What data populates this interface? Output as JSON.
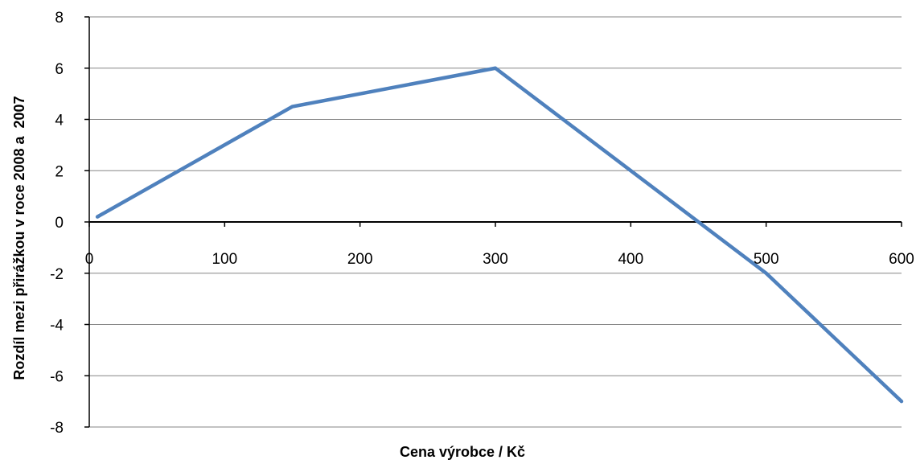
{
  "chart_data": {
    "type": "line",
    "title": "",
    "xlabel": "Cena výrobce / Kč",
    "ylabel": "Rozdíl mezi přirážkou v roce 2008 a  2007",
    "xlim": [
      0,
      600
    ],
    "ylim": [
      -8,
      8
    ],
    "x_ticks": [
      0,
      100,
      200,
      300,
      400,
      500,
      600
    ],
    "y_ticks": [
      8,
      6,
      4,
      2,
      0,
      -2,
      -4,
      -6,
      -8
    ],
    "x_tick_labels": [
      "0",
      "100",
      "200",
      "300",
      "400",
      "500",
      "600"
    ],
    "y_tick_labels": [
      "8",
      "6",
      "4",
      "2",
      "0",
      "-2",
      "-4",
      "-6",
      "-8"
    ],
    "grid": true,
    "series": [
      {
        "x": [
          6,
          150,
          300,
          500,
          600
        ],
        "y": [
          0.2,
          4.5,
          6,
          -2,
          -7
        ]
      }
    ],
    "colors": {
      "line": "#4F81BD",
      "gridline": "#868686",
      "axis": "#000000",
      "positive_tick_label": "#000000",
      "negative_tick_label": "#FF0000"
    }
  }
}
